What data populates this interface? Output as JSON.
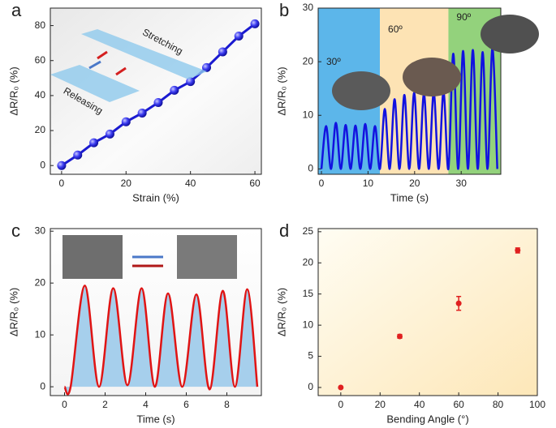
{
  "chart_data": [
    {
      "panel": "a",
      "type": "line",
      "xlabel": "Strain (%)",
      "ylabel": "ΔR/R₀ (%)",
      "color": "#1a1ad0",
      "x": [
        0,
        5,
        10,
        15,
        20,
        25,
        30,
        35,
        40,
        45,
        50,
        55,
        60
      ],
      "values": [
        0,
        6,
        13,
        18,
        25,
        30,
        36,
        43,
        48,
        56,
        65,
        74,
        81
      ],
      "markers": true,
      "xlim": [
        -3.5,
        62
      ],
      "ylim": [
        -5,
        90
      ],
      "xticks": [
        0,
        20,
        40,
        60
      ],
      "yticks": [
        0,
        20,
        40,
        60,
        80
      ],
      "annotations": [
        "Stretching",
        "Releasing"
      ]
    },
    {
      "panel": "b",
      "type": "line",
      "xlabel": "Time (s)",
      "ylabel": "ΔR/R₀ (%)",
      "color": "#1212e0",
      "x": [
        0,
        1,
        2.05,
        3.1,
        4.15,
        5.2,
        6.25,
        7.3,
        8.35,
        9.4,
        10.45,
        11.5,
        12.55,
        13.6,
        14.65,
        15.7,
        16.75,
        17.8,
        18.85,
        19.9,
        20.95,
        22,
        23.05,
        24.1,
        25.15,
        26.2,
        27.25,
        28.3,
        29.35,
        30.4,
        31.45,
        32.5,
        33.55,
        34.6,
        35.65,
        36.7,
        37.75
      ],
      "values": [
        0,
        8,
        0,
        8.6,
        0,
        8.2,
        0,
        8.1,
        0,
        8.4,
        0,
        8.0,
        0,
        11.2,
        0,
        13,
        0,
        13.8,
        0,
        14.2,
        0,
        14,
        0,
        14.3,
        0,
        14.4,
        0,
        21.5,
        0,
        22,
        0,
        22.2,
        0,
        21.8,
        0,
        22.5,
        0
      ],
      "markers": false,
      "xlim": [
        -0.7,
        38.5
      ],
      "ylim": [
        -1,
        30
      ],
      "xticks": [
        0,
        10,
        20,
        30
      ],
      "yticks": [
        0,
        10,
        20,
        30
      ],
      "regions": [
        {
          "label": "30º",
          "color": "#5cb6ea"
        },
        {
          "label": "60º",
          "color": "#fde3b4"
        },
        {
          "label": "90º",
          "color": "#93d27c"
        }
      ],
      "region_bounds": [
        12.55,
        27.25
      ]
    },
    {
      "panel": "c",
      "type": "area",
      "xlabel": "Time (s)",
      "ylabel": "ΔR/R₀ (%)",
      "color": "#e01414",
      "fill": "#a6cfec",
      "x": [
        0,
        0.3,
        1.0,
        1.7,
        2.4,
        3.1,
        3.8,
        4.45,
        5.1,
        5.8,
        6.5,
        7.15,
        7.8,
        8.4,
        9.0,
        9.5
      ],
      "values": [
        0,
        0,
        19.5,
        0,
        19,
        0.3,
        19,
        0,
        18,
        0,
        17.8,
        -0.5,
        18.5,
        0,
        18.8,
        0
      ],
      "xlim": [
        -0.7,
        9.7
      ],
      "ylim": [
        -1.7,
        30.5
      ],
      "xticks": [
        0,
        2,
        4,
        6,
        8
      ],
      "yticks": [
        0,
        10,
        20,
        30
      ]
    },
    {
      "panel": "d",
      "type": "scatter",
      "xlabel": "Bending Angle (°)",
      "ylabel": "ΔR/R₀ (%)",
      "color": "#e02020",
      "x": [
        0,
        30,
        60,
        90
      ],
      "values": [
        0,
        8.2,
        13.5,
        22
      ],
      "errors": [
        0,
        0.3,
        1.1,
        0.4
      ],
      "xlim": [
        -11.5,
        100
      ],
      "ylim": [
        -1.3,
        25.5
      ],
      "xticks": [
        0,
        20,
        40,
        60,
        80,
        100
      ],
      "yticks": [
        0,
        5,
        10,
        15,
        20,
        25
      ]
    }
  ]
}
